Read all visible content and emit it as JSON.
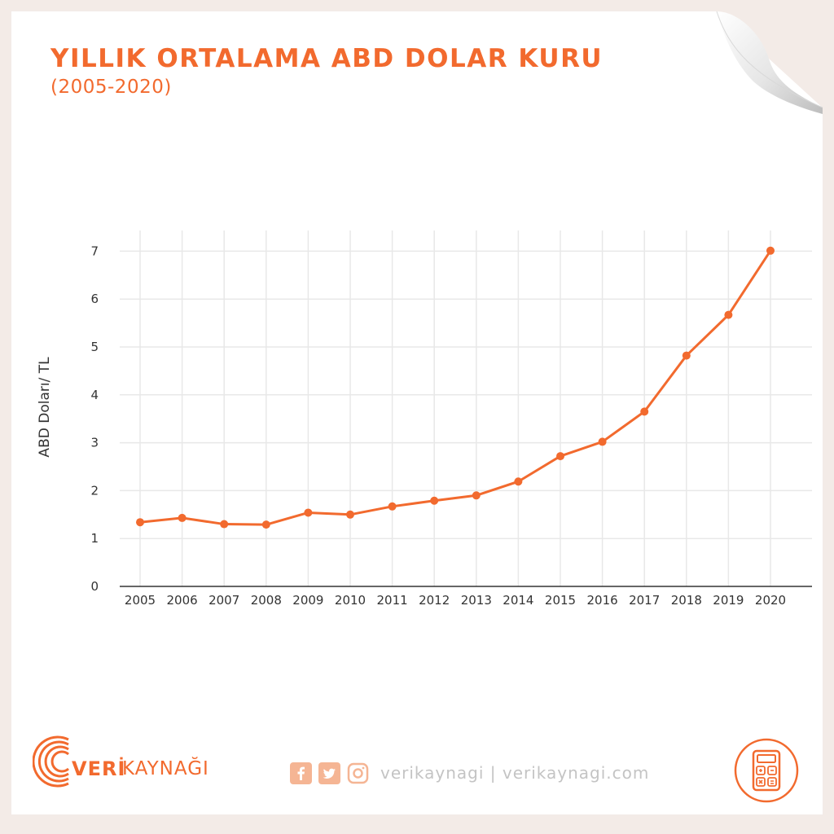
{
  "header": {
    "title": "YILLIK ORTALAMA ABD DOLAR KURU",
    "subtitle": "(2005-2020)"
  },
  "chart_data": {
    "type": "line",
    "ylabel": "ABD Doları/ TL",
    "xlabel": "",
    "x": [
      "2005",
      "2006",
      "2007",
      "2008",
      "2009",
      "2010",
      "2011",
      "2012",
      "2013",
      "2014",
      "2015",
      "2016",
      "2017",
      "2018",
      "2019",
      "2020"
    ],
    "series": [
      {
        "values": [
          1.34,
          1.43,
          1.3,
          1.29,
          1.54,
          1.5,
          1.67,
          1.79,
          1.9,
          2.19,
          2.72,
          3.02,
          3.65,
          4.82,
          5.67,
          7.01
        ]
      }
    ],
    "ylim": [
      0,
      7
    ],
    "yticks": [
      0,
      1,
      2,
      3,
      4,
      5,
      6,
      7
    ],
    "grid": true,
    "line_color": "#f26a2e"
  },
  "footer": {
    "logo_veri": "VERİ",
    "logo_kaynagi": "KAYNAĞI",
    "social_text": "verikaynagi | verikaynagi.com",
    "icons": [
      "facebook-icon",
      "twitter-icon",
      "instagram-icon",
      "calculator-icon"
    ],
    "accent_color": "#f26a2e",
    "muted_color": "#f5b594"
  }
}
